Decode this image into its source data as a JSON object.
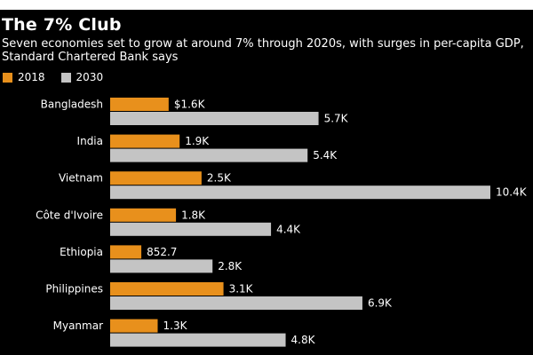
{
  "colors": {
    "background": "#000000",
    "text": "#ffffff",
    "series_2018": "#e8901c",
    "series_2030": "#c4c4c4"
  },
  "chart_data": {
    "type": "bar",
    "orientation": "horizontal",
    "title": "The 7% Club",
    "subtitle": "Seven economies set to grow at around 7% through 2020s, with surges in per-capita GDP, Standard Chartered Bank says",
    "categories": [
      "Bangladesh",
      "India",
      "Vietnam",
      "Côte d'Ivoire",
      "Ethiopia",
      "Philippines",
      "Myanmar"
    ],
    "series": [
      {
        "name": "2018",
        "values": [
          1600,
          1900,
          2500,
          1800,
          852.7,
          3100,
          1300
        ],
        "labels": [
          "$1.6K",
          "1.9K",
          "2.5K",
          "1.8K",
          "852.7",
          "3.1K",
          "1.3K"
        ]
      },
      {
        "name": "2030",
        "values": [
          5700,
          5400,
          10400,
          4400,
          2800,
          6900,
          4800
        ],
        "labels": [
          "5.7K",
          "5.4K",
          "10.4K",
          "4.4K",
          "2.8K",
          "6.9K",
          "4.8K"
        ]
      }
    ],
    "xlim": [
      0,
      10400
    ],
    "legend_position": "top-left",
    "grid": false
  }
}
